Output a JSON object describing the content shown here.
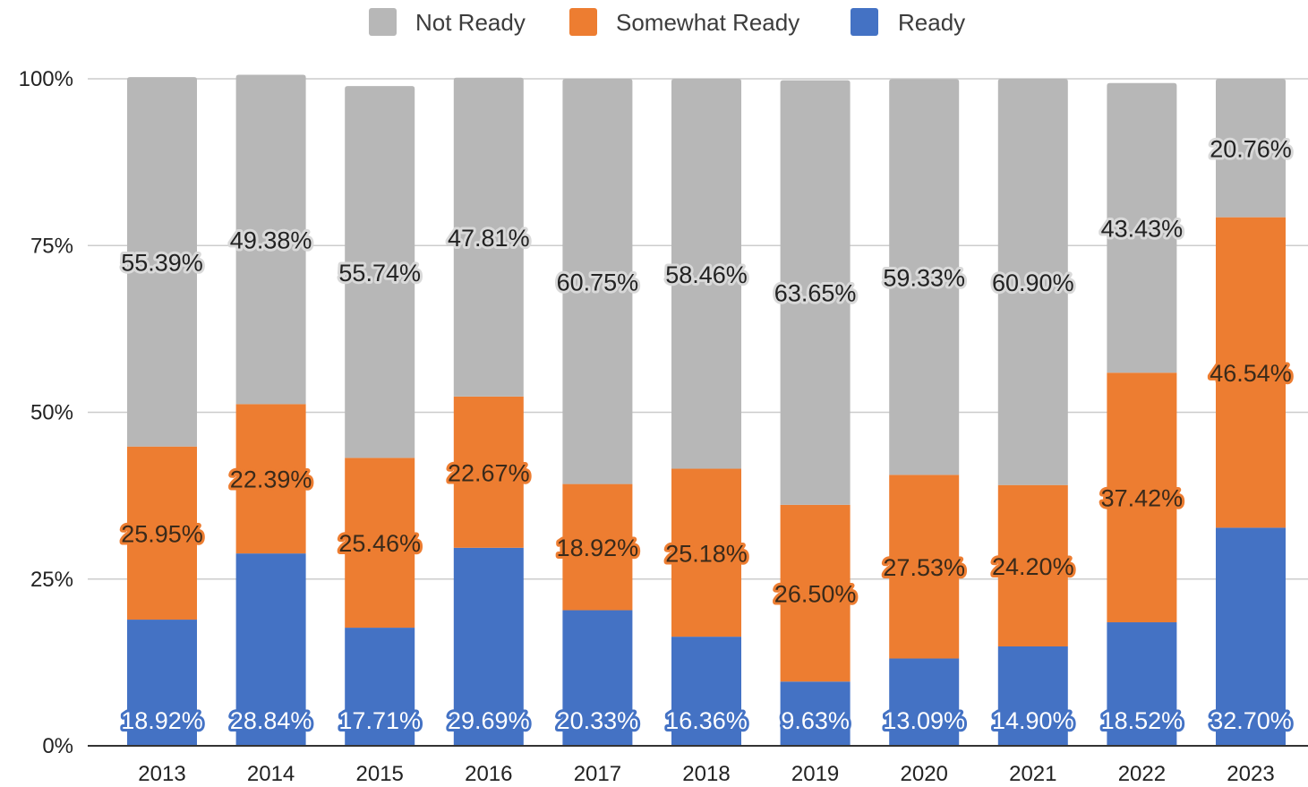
{
  "chart_data": {
    "type": "bar",
    "stacked": true,
    "percent_stacked": true,
    "categories": [
      "2013",
      "2014",
      "2015",
      "2016",
      "2017",
      "2018",
      "2019",
      "2020",
      "2021",
      "2022",
      "2023"
    ],
    "series": [
      {
        "name": "Ready",
        "color": "#4472c4",
        "values": [
          18.92,
          28.84,
          17.71,
          29.69,
          20.33,
          16.36,
          9.63,
          13.09,
          14.9,
          18.52,
          32.7
        ],
        "labels": [
          "18.92%",
          "28.84%",
          "17.71%",
          "29.69%",
          "20.33%",
          "16.36%",
          "9.63%",
          "13.09%",
          "14.90%",
          "18.52%",
          "32.70%"
        ]
      },
      {
        "name": "Somewhat Ready",
        "color": "#ed7d31",
        "values": [
          25.95,
          22.39,
          25.46,
          22.67,
          18.92,
          25.18,
          26.5,
          27.53,
          24.2,
          37.42,
          46.54
        ],
        "labels": [
          "25.95%",
          "22.39%",
          "25.46%",
          "22.67%",
          "18.92%",
          "25.18%",
          "26.50%",
          "27.53%",
          "24.20%",
          "37.42%",
          "46.54%"
        ]
      },
      {
        "name": "Not Ready",
        "color": "#b7b7b7",
        "values": [
          55.39,
          49.38,
          55.74,
          47.81,
          60.75,
          58.46,
          63.65,
          59.33,
          60.9,
          43.43,
          20.76
        ],
        "labels": [
          "55.39%",
          "49.38%",
          "55.74%",
          "47.81%",
          "60.75%",
          "58.46%",
          "63.65%",
          "59.33%",
          "60.90%",
          "43.43%",
          "20.76%"
        ]
      }
    ],
    "legend": {
      "position": "top",
      "order": [
        "Not Ready",
        "Somewhat Ready",
        "Ready"
      ]
    },
    "y_axis": {
      "ylim": [
        0,
        100
      ],
      "ticks": [
        0,
        25,
        50,
        75,
        100
      ],
      "tick_labels": [
        "0%",
        "25%",
        "50%",
        "75%",
        "100%"
      ]
    },
    "grid": true,
    "title": "",
    "xlabel": "",
    "ylabel": "",
    "gridline_color": "#cccccc",
    "axis_color": "#333333"
  }
}
